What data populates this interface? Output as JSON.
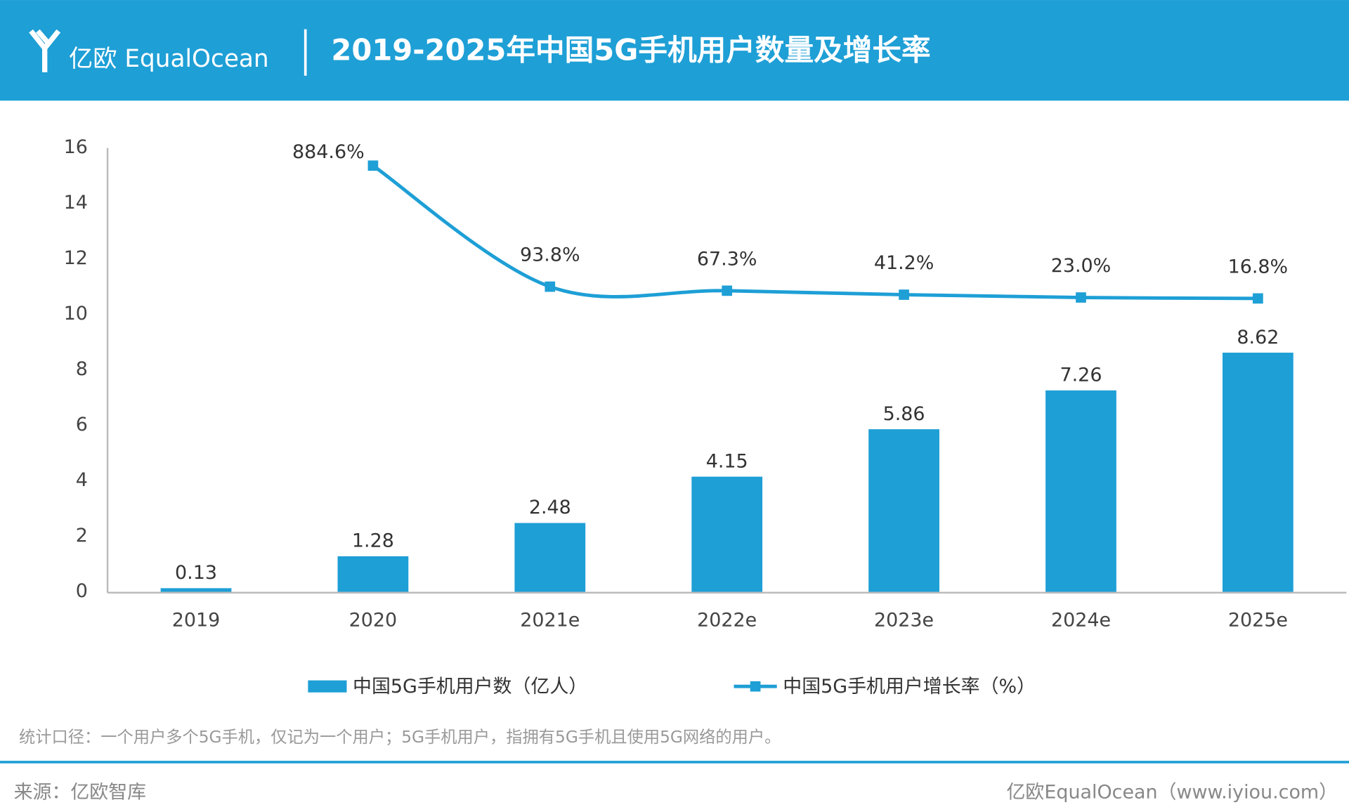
{
  "brand": "亿欧 EqualOcean",
  "chart_data": {
    "type": "bar_line",
    "title": "2019-2025年中国5G手机用户数量及增长率",
    "categories": [
      "2019",
      "2020",
      "2021e",
      "2022e",
      "2023e",
      "2024e",
      "2025e"
    ],
    "series": [
      {
        "name": "中国5G手机用户数（亿人）",
        "type": "bar",
        "color": "#1e9fd6",
        "values": [
          0.13,
          1.28,
          2.48,
          4.15,
          5.86,
          7.26,
          8.62
        ]
      },
      {
        "name": "中国5G手机用户增长率（%）",
        "type": "line",
        "axis": "y2",
        "color": "#1e9fd6",
        "values": [
          null,
          884.6,
          93.8,
          67.3,
          41.2,
          23.0,
          16.8
        ],
        "value_labels": [
          null,
          "884.6%",
          "93.8%",
          "67.3%",
          "41.2%",
          "23.0%",
          "16.8%"
        ]
      }
    ],
    "ylim": [
      0,
      16
    ],
    "yticks": [
      0,
      2,
      4,
      6,
      8,
      10,
      12,
      14,
      16
    ],
    "y2lim": [
      -1900,
      1000
    ],
    "grid": false,
    "legend": "bottom"
  },
  "note": "统计口径：一个用户多个5G手机，仅记为一个用户；5G手机用户，指拥有5G手机且使用5G网络的用户。",
  "source": "来源：亿欧智库",
  "credit": "亿欧EqualOcean（www.iyiou.com）"
}
